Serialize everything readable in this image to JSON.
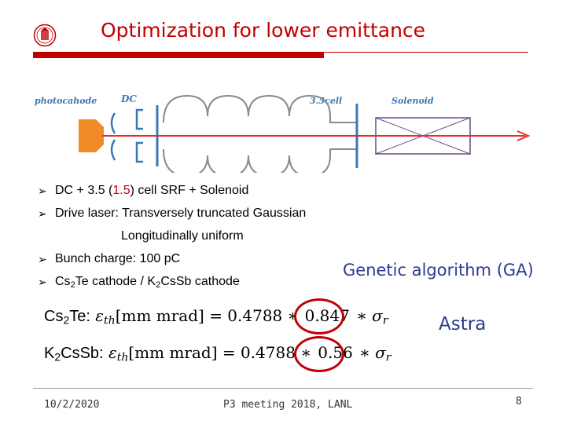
{
  "slide": {
    "title": "Optimization for lower emittance",
    "colors": {
      "accent": "#c00000",
      "blue": "#2e3b90",
      "diagram_blue": "#3a78b5",
      "cathode_orange": "#f08c28"
    }
  },
  "diagram": {
    "labels": {
      "photocathode": "photocahode",
      "dc": "DC",
      "cell": "3.5cell",
      "solenoid": "Solenoid"
    }
  },
  "bullets": {
    "b1": {
      "pre": "DC + 3.5 (",
      "red": "1.5",
      "post": ") cell SRF + Solenoid"
    },
    "b2": "Drive laser: Transversely truncated Gaussian",
    "b2_indent": "Longitudinally uniform",
    "b3": "Bunch charge: 100 pC",
    "b4": {
      "a": "Cs",
      "a_sub": "2",
      "b": "Te cathode / K",
      "b_sub": "2",
      "c": "CsSb cathode"
    }
  },
  "side_labels": {
    "ga": "Genetic algorithm (GA)",
    "astra": "Astra"
  },
  "equations": {
    "eq1": {
      "material": "Cs",
      "material_sub": "2",
      "material_rest": "Te:",
      "lhs_sym": "ε",
      "lhs_sub": "th",
      "unit": "[mm mrad] = 0.4788 ∗ ",
      "circled": "0.847",
      "rhs": "∗ σ",
      "rhs_sub": "r"
    },
    "eq2": {
      "material": "K",
      "material_sub": "2",
      "material_rest": "CsSb:",
      "lhs_sym": "ε",
      "lhs_sub": "th",
      "unit": "[mm mrad] = 0.4788 ∗ ",
      "circled": "0.56",
      "rhs": "∗ σ",
      "rhs_sub": "r"
    }
  },
  "footer": {
    "date": "10/2/2020",
    "event": "P3 meeting 2018, LANL",
    "page": "8"
  }
}
